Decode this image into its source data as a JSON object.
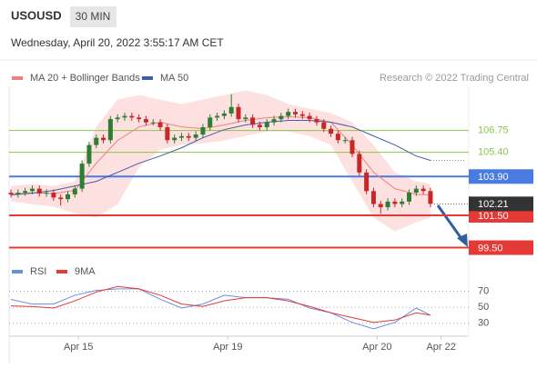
{
  "header": {
    "symbol": "USOUSD",
    "interval": "30 MIN",
    "timestamp": "Wednesday, April 20, 2022 3:55:17 AM CET"
  },
  "chart_data": [
    {
      "type": "candlestick",
      "credit": "Research © 2022 Trading Central",
      "xlim": [
        0,
        64
      ],
      "ylim": [
        98.8,
        109.2
      ],
      "up_color": "#2e7d32",
      "down_color": "#c62828",
      "open": [
        102.9,
        102.8,
        102.9,
        103.0,
        103.15,
        102.85,
        102.9,
        102.6,
        102.5,
        102.8,
        103.15,
        104.7,
        105.85,
        106.3,
        106.15,
        107.45,
        107.55,
        107.65,
        107.55,
        107.45,
        107.25,
        107.25,
        106.95,
        106.15,
        106.3,
        106.4,
        106.3,
        106.5,
        106.95,
        107.55,
        107.65,
        107.8,
        108.2,
        107.45,
        107.55,
        107.1,
        106.95,
        107.25,
        107.45,
        107.65,
        107.9,
        107.75,
        107.65,
        107.45,
        107.25,
        106.85,
        106.55,
        106.15,
        106.15,
        105.3,
        104.15,
        103.0,
        102.2,
        102.0,
        102.35,
        102.2,
        102.35,
        102.9,
        103.15,
        103.0
      ],
      "high": [
        103.1,
        103.1,
        103.2,
        103.35,
        103.35,
        103.1,
        103.1,
        102.8,
        103.0,
        103.35,
        104.9,
        106.05,
        106.5,
        106.5,
        107.65,
        107.75,
        107.85,
        107.85,
        107.75,
        107.65,
        107.45,
        107.45,
        107.15,
        106.5,
        106.6,
        106.6,
        106.7,
        107.15,
        107.75,
        107.85,
        108.0,
        109.0,
        108.4,
        107.75,
        107.75,
        107.3,
        107.45,
        107.65,
        107.85,
        108.1,
        108.1,
        107.95,
        107.85,
        107.65,
        107.45,
        107.05,
        106.75,
        106.35,
        106.35,
        105.5,
        104.35,
        103.2,
        102.4,
        102.55,
        102.55,
        102.55,
        103.1,
        103.35,
        103.35,
        103.2
      ],
      "low": [
        102.6,
        102.6,
        102.7,
        102.8,
        102.65,
        102.65,
        102.4,
        102.1,
        102.3,
        102.6,
        102.95,
        104.5,
        105.65,
        105.95,
        105.95,
        107.25,
        107.35,
        107.35,
        107.25,
        107.05,
        107.05,
        106.75,
        105.95,
        105.95,
        106.1,
        106.1,
        106.1,
        106.3,
        106.75,
        107.35,
        107.45,
        107.6,
        107.25,
        107.25,
        106.9,
        106.75,
        106.75,
        107.05,
        107.25,
        107.45,
        107.55,
        107.45,
        107.25,
        107.05,
        106.65,
        106.35,
        105.95,
        105.95,
        105.1,
        103.95,
        102.8,
        102.0,
        101.6,
        101.8,
        102.0,
        102.0,
        102.15,
        102.7,
        102.8,
        102.0
      ],
      "close": [
        102.8,
        102.9,
        103.0,
        103.15,
        102.85,
        102.9,
        102.6,
        102.5,
        102.8,
        103.15,
        104.7,
        105.85,
        106.3,
        106.15,
        107.45,
        107.55,
        107.65,
        107.55,
        107.45,
        107.25,
        107.25,
        106.95,
        106.15,
        106.3,
        106.4,
        106.3,
        106.5,
        106.95,
        107.55,
        107.65,
        107.8,
        108.2,
        107.45,
        107.55,
        107.1,
        106.95,
        107.25,
        107.45,
        107.65,
        107.9,
        107.75,
        107.65,
        107.45,
        107.25,
        106.85,
        106.55,
        106.15,
        106.15,
        105.3,
        104.15,
        103.0,
        102.2,
        102.0,
        102.35,
        102.2,
        102.35,
        102.9,
        103.15,
        103.0,
        102.21
      ],
      "last_price": 102.21,
      "series": [
        {
          "name": "MA 20 + Bollinger Bands",
          "color": "#f08080",
          "band_color": "#fde0e0",
          "x": [
            0,
            3,
            6,
            9,
            12,
            15,
            18,
            21,
            24,
            27,
            30,
            33,
            36,
            39,
            42,
            45,
            48,
            51,
            54,
            57,
            59
          ],
          "values": [
            102.8,
            102.9,
            102.85,
            103.04,
            104.72,
            106.13,
            106.97,
            107.26,
            106.97,
            106.86,
            107.09,
            107.37,
            107.54,
            107.6,
            107.54,
            107.26,
            105.85,
            104.16,
            103.15,
            102.8,
            102.76
          ],
          "upper": [
            103.32,
            103.43,
            103.32,
            103.6,
            106.97,
            108.66,
            108.94,
            108.66,
            108.38,
            108.66,
            108.94,
            109.22,
            108.94,
            108.38,
            108.1,
            107.82,
            107.26,
            105.85,
            104.16,
            103.6,
            103.43
          ],
          "lower": [
            102.36,
            102.19,
            102.03,
            101.63,
            101.35,
            102.19,
            104.44,
            105.57,
            105.85,
            105.96,
            106.13,
            106.41,
            106.69,
            106.69,
            106.41,
            105.85,
            103.6,
            101.35,
            100.51,
            101.07,
            101.35
          ]
        },
        {
          "name": "MA 50",
          "color": "#3f5fa8",
          "x": [
            0,
            3,
            6,
            9,
            12,
            15,
            18,
            21,
            24,
            27,
            30,
            33,
            36,
            39,
            42,
            45,
            48,
            51,
            54,
            57,
            59
          ],
          "values": [
            102.76,
            102.87,
            103.04,
            103.32,
            103.6,
            104.16,
            104.72,
            105.17,
            105.68,
            106.3,
            106.8,
            107.09,
            107.26,
            107.37,
            107.37,
            107.26,
            106.97,
            106.41,
            105.85,
            105.17,
            104.9
          ]
        }
      ],
      "levels": [
        {
          "value": 106.75,
          "color": "#8bc34a",
          "style": "text"
        },
        {
          "value": 105.4,
          "label": "105.40",
          "color": "#8bc34a",
          "style": "text"
        },
        {
          "value": 103.9,
          "label": "103.90",
          "color": "#4a7be0",
          "style": "box"
        },
        {
          "value": 101.5,
          "label": "101.50",
          "color": "#e53935",
          "style": "box"
        },
        {
          "value": 99.5,
          "label": "99.50",
          "color": "#e53935",
          "style": "box"
        }
      ]
    },
    {
      "type": "line",
      "xlim": [
        0,
        64
      ],
      "ylim": [
        16,
        82
      ],
      "yticks": [
        70,
        50,
        30
      ],
      "grid": true,
      "xticks": [
        {
          "value": 9.5,
          "label": "Apr 15"
        },
        {
          "value": 30.5,
          "label": "Apr 19"
        },
        {
          "value": 51.5,
          "label": "Apr 20"
        },
        {
          "value": 60.5,
          "label": "Apr 22"
        }
      ],
      "series": [
        {
          "name": "RSI",
          "color": "#6b8de0",
          "x": [
            0,
            3,
            6,
            9,
            12,
            15,
            18,
            21,
            24,
            27,
            30,
            33,
            36,
            39,
            42,
            45,
            48,
            51,
            54,
            57,
            59
          ],
          "values": [
            59.7,
            54,
            54,
            65,
            71,
            73,
            73,
            60,
            49,
            54,
            65,
            62,
            62,
            60,
            49,
            43,
            31,
            23,
            31,
            49,
            40
          ]
        },
        {
          "name": "9MA",
          "color": "#e53935",
          "x": [
            0,
            3,
            6,
            9,
            12,
            15,
            18,
            21,
            24,
            27,
            30,
            33,
            36,
            39,
            42,
            45,
            48,
            51,
            54,
            57,
            59
          ],
          "values": [
            51.7,
            50.9,
            49,
            58,
            69,
            76,
            73,
            65,
            54,
            51,
            58,
            62,
            62,
            58,
            51,
            43,
            37,
            31,
            34,
            43,
            40
          ]
        }
      ]
    }
  ]
}
